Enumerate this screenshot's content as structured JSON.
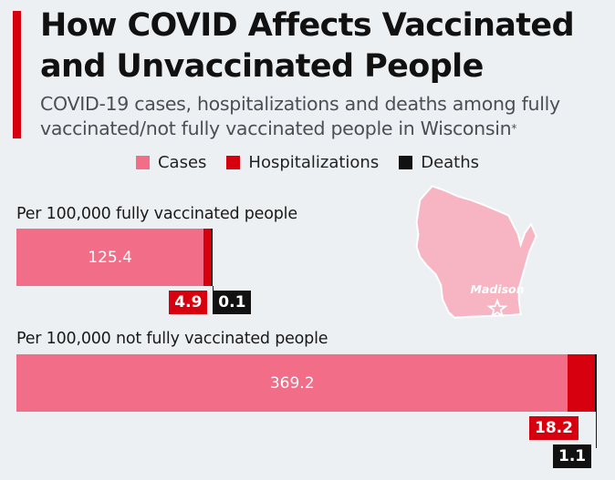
{
  "title": "How COVID Affects Vaccinated and Unvaccinated People",
  "subtitle": "COVID-19 cases, hospitalizations and deaths among fully vaccinated/not fully vaccinated people in Wisconsin",
  "subtitle_mark": "*",
  "map_label": "Madison",
  "colors": {
    "cases": "#f26d87",
    "hospitalizations": "#d7000f",
    "deaths": "#111111",
    "accent": "#d7000f",
    "map_fill": "#f7b5c3",
    "map_stroke": "#ffffff"
  },
  "chart_data": {
    "type": "bar",
    "orientation": "horizontal",
    "stacked": true,
    "title": "How COVID Affects Vaccinated and Unvaccinated People",
    "subtitle": "COVID-19 cases, hospitalizations and deaths among fully vaccinated/not fully vaccinated people in Wisconsin",
    "categories": [
      "Per 100,000 fully vaccinated people",
      "Per 100,000 not fully vaccinated people"
    ],
    "series": [
      {
        "name": "Cases",
        "values": [
          125.4,
          369.2
        ]
      },
      {
        "name": "Hospitalizations",
        "values": [
          4.9,
          18.2
        ]
      },
      {
        "name": "Deaths",
        "values": [
          0.1,
          1.1
        ]
      }
    ],
    "legend_position": "top",
    "grid": false
  }
}
